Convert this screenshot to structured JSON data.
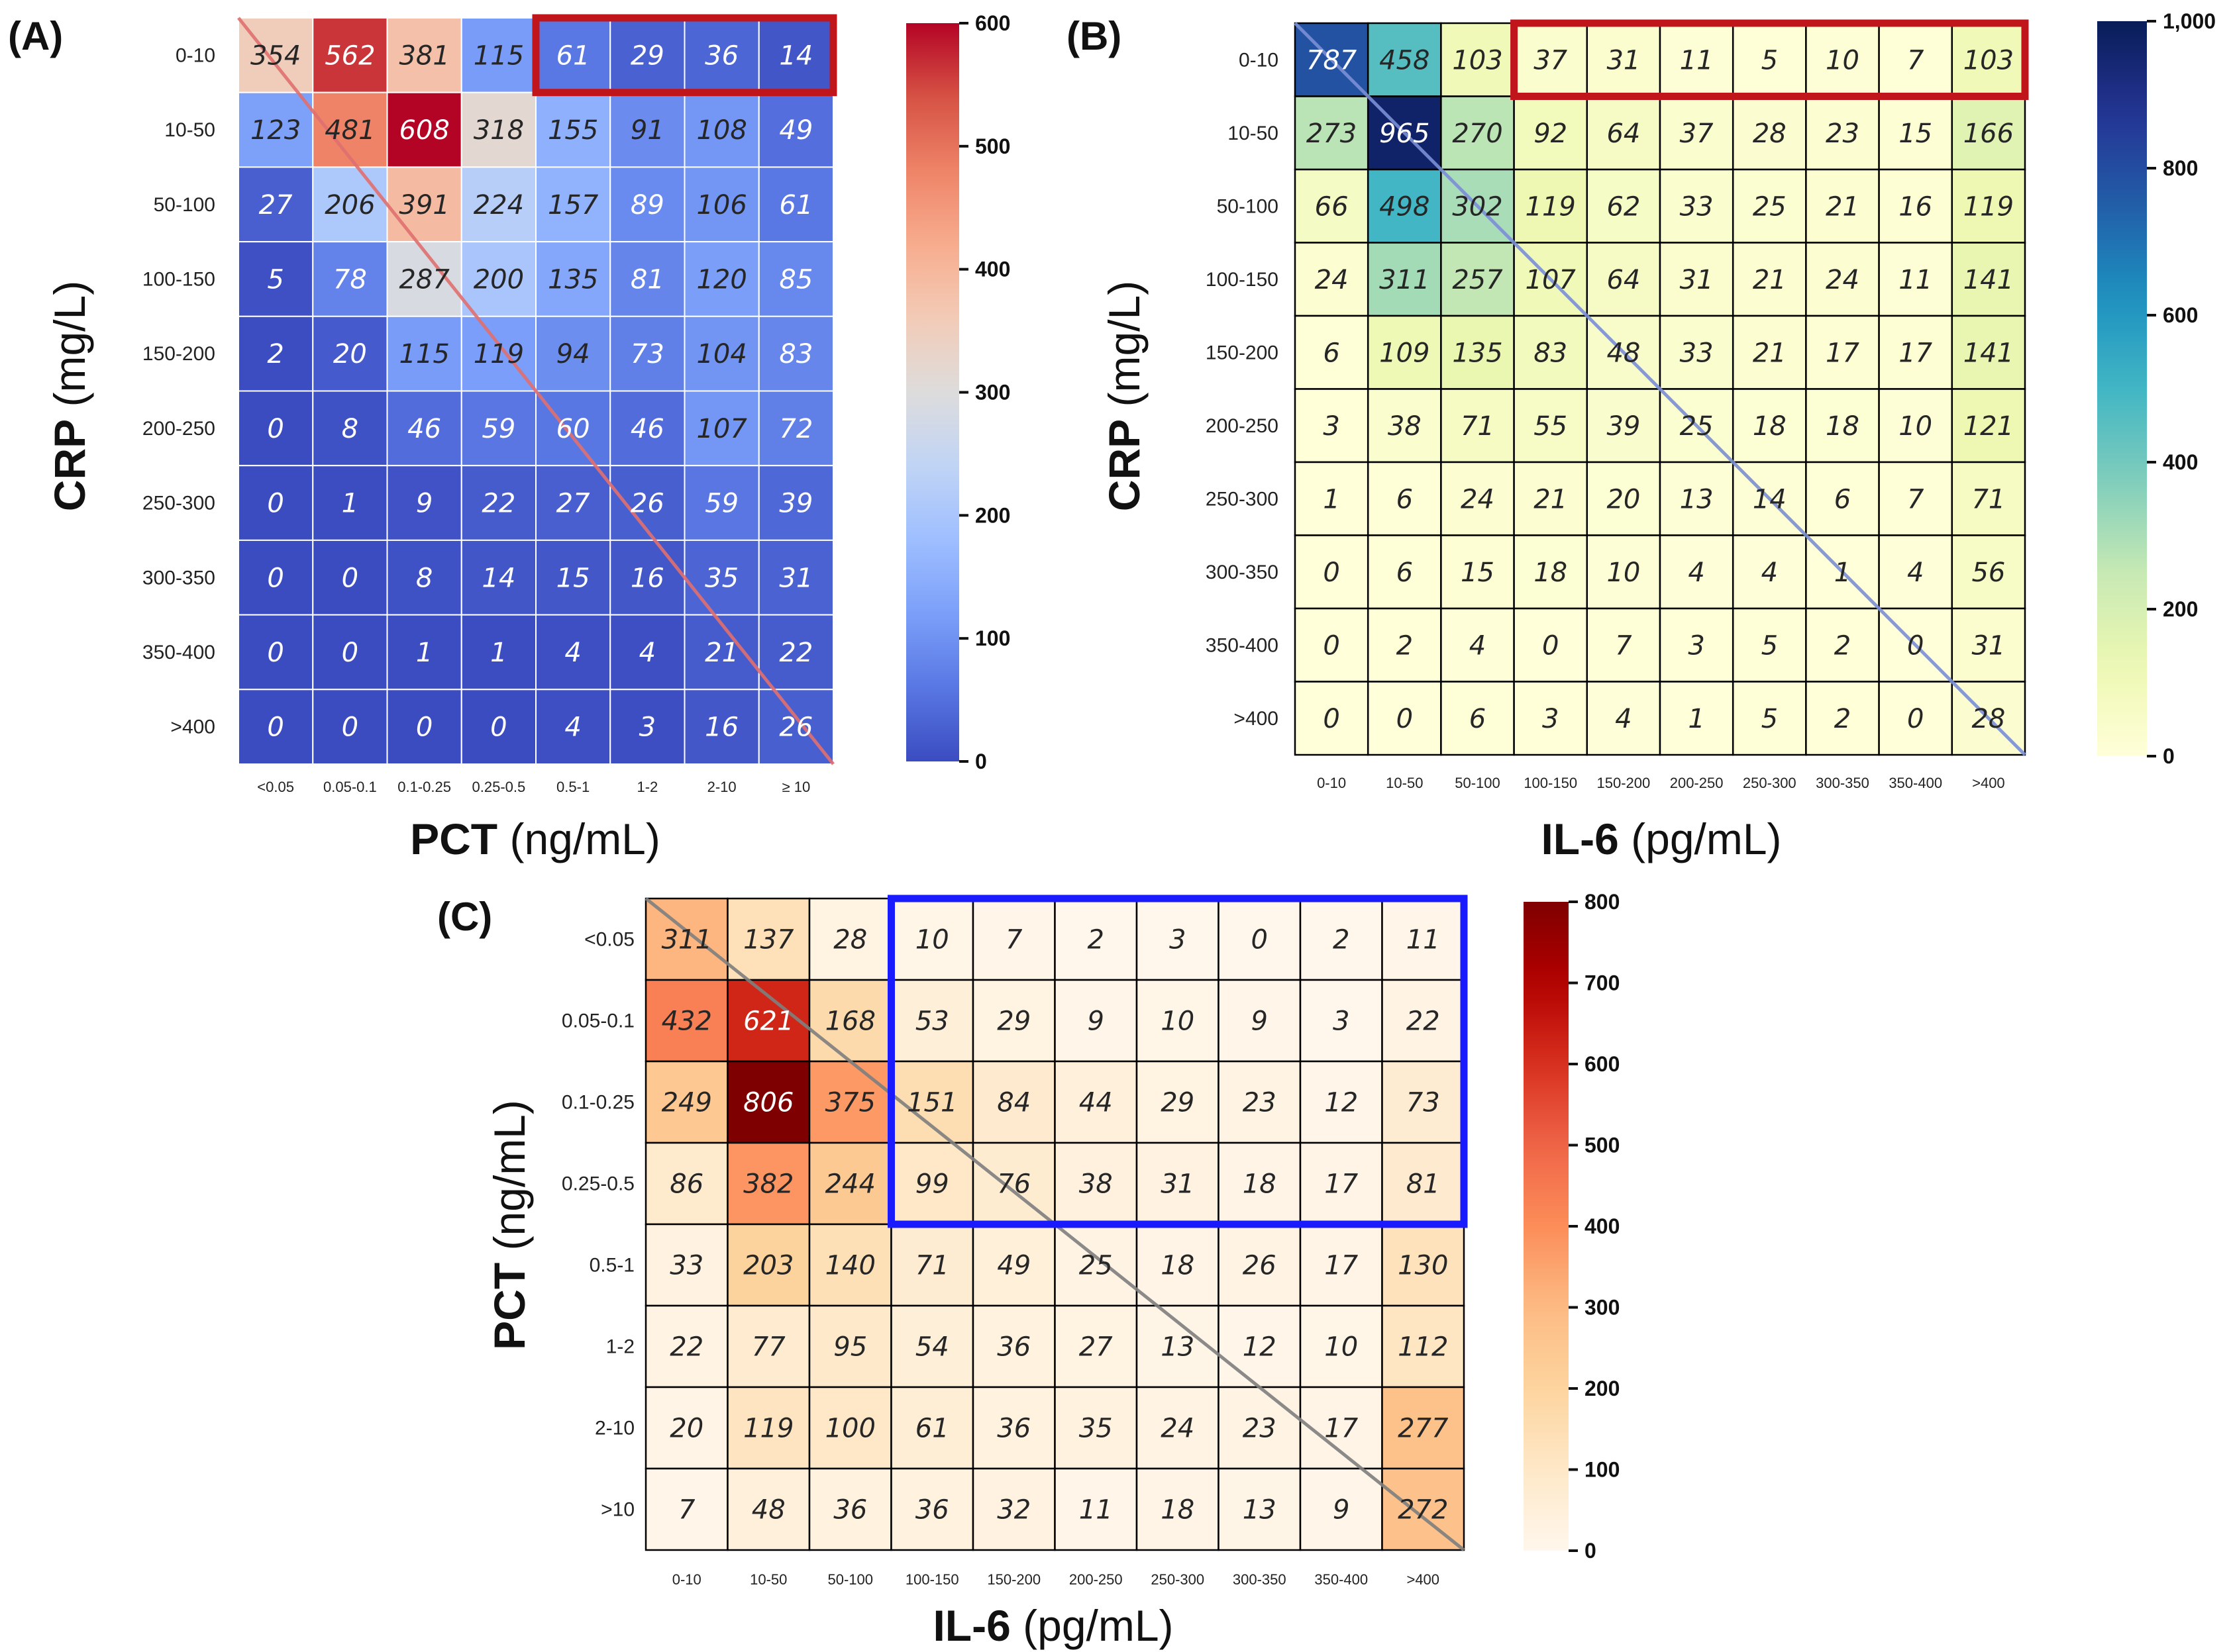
{
  "chart_data": [
    {
      "type": "heatmap",
      "panel_label": "(A)",
      "xlabel_bold": "PCT",
      "xlabel_unit": " (ng/mL)",
      "ylabel_bold": "CRP",
      "ylabel_unit": " (mg/L)",
      "x_categories": [
        "<0.05",
        "0.05-0.1",
        "0.1-0.25",
        "0.25-0.5",
        "0.5-1",
        "1-2",
        "2-10",
        "≥ 10"
      ],
      "y_categories": [
        "0-10",
        "10-50",
        "50-100",
        "100-150",
        "150-200",
        "200-250",
        "250-300",
        "300-350",
        "350-400",
        ">400"
      ],
      "values": [
        [
          354,
          562,
          381,
          115,
          61,
          29,
          36,
          14
        ],
        [
          123,
          481,
          608,
          318,
          155,
          91,
          108,
          49
        ],
        [
          27,
          206,
          391,
          224,
          157,
          89,
          106,
          61
        ],
        [
          5,
          78,
          287,
          200,
          135,
          81,
          120,
          85
        ],
        [
          2,
          20,
          115,
          119,
          94,
          73,
          104,
          83
        ],
        [
          0,
          8,
          46,
          59,
          60,
          46,
          107,
          72
        ],
        [
          0,
          1,
          9,
          22,
          27,
          26,
          59,
          39
        ],
        [
          0,
          0,
          8,
          14,
          15,
          16,
          35,
          31
        ],
        [
          0,
          0,
          1,
          1,
          4,
          4,
          21,
          22
        ],
        [
          0,
          0,
          0,
          0,
          4,
          3,
          16,
          26
        ]
      ],
      "colormap": "coolwarm",
      "vmin": 0,
      "vmax": 600,
      "colorbar_ticks": [
        0,
        100,
        200,
        300,
        400,
        500,
        600
      ],
      "colorbar_tick_labels": [
        "0",
        "100",
        "200",
        "300",
        "400",
        "500",
        "600"
      ],
      "highlight": {
        "row_start": 0,
        "row_end": 0,
        "col_start": 4,
        "col_end": 7,
        "color": "#c0151b"
      },
      "diagonal_color": "#e07070",
      "cell_borders": "white"
    },
    {
      "type": "heatmap",
      "panel_label": "(B)",
      "xlabel_bold": "IL-6",
      "xlabel_unit": " (pg/mL)",
      "ylabel_bold": "CRP",
      "ylabel_unit": " (mg/L)",
      "x_categories": [
        "0-10",
        "10-50",
        "50-100",
        "100-150",
        "150-200",
        "200-250",
        "250-300",
        "300-350",
        "350-400",
        ">400"
      ],
      "y_categories": [
        "0-10",
        "10-50",
        "50-100",
        "100-150",
        "150-200",
        "200-250",
        "250-300",
        "300-350",
        "350-400",
        ">400"
      ],
      "values": [
        [
          787,
          458,
          103,
          37,
          31,
          11,
          5,
          10,
          7,
          103
        ],
        [
          273,
          965,
          270,
          92,
          64,
          37,
          28,
          23,
          15,
          166
        ],
        [
          66,
          498,
          302,
          119,
          62,
          33,
          25,
          21,
          16,
          119
        ],
        [
          24,
          311,
          257,
          107,
          64,
          31,
          21,
          24,
          11,
          141
        ],
        [
          6,
          109,
          135,
          83,
          48,
          33,
          21,
          17,
          17,
          141
        ],
        [
          3,
          38,
          71,
          55,
          39,
          25,
          18,
          18,
          10,
          121
        ],
        [
          1,
          6,
          24,
          21,
          20,
          13,
          14,
          6,
          7,
          71
        ],
        [
          0,
          6,
          15,
          18,
          10,
          4,
          4,
          1,
          4,
          56
        ],
        [
          0,
          2,
          4,
          0,
          7,
          3,
          5,
          2,
          0,
          31
        ],
        [
          0,
          0,
          6,
          3,
          4,
          1,
          5,
          2,
          0,
          28
        ]
      ],
      "colormap": "YlGnBu",
      "vmin": 0,
      "vmax": 1000,
      "colorbar_ticks": [
        0,
        200,
        400,
        600,
        800,
        1000
      ],
      "colorbar_tick_labels": [
        "0",
        "200",
        "400",
        "600",
        "800",
        "1,000"
      ],
      "highlight": {
        "row_start": 0,
        "row_end": 0,
        "col_start": 3,
        "col_end": 9,
        "color": "#c0151b"
      },
      "diagonal_color": "#7b8fd6",
      "cell_borders": "black"
    },
    {
      "type": "heatmap",
      "panel_label": "(C)",
      "xlabel_bold": "IL-6",
      "xlabel_unit": " (pg/mL)",
      "ylabel_bold": "PCT",
      "ylabel_unit": " (ng/mL)",
      "x_categories": [
        "0-10",
        "10-50",
        "50-100",
        "100-150",
        "150-200",
        "200-250",
        "250-300",
        "300-350",
        "350-400",
        ">400"
      ],
      "y_categories": [
        "<0.05",
        "0.05-0.1",
        "0.1-0.25",
        "0.25-0.5",
        "0.5-1",
        "1-2",
        "2-10",
        ">10"
      ],
      "values": [
        [
          311,
          137,
          28,
          10,
          7,
          2,
          3,
          0,
          2,
          11
        ],
        [
          432,
          621,
          168,
          53,
          29,
          9,
          10,
          9,
          3,
          22
        ],
        [
          249,
          806,
          375,
          151,
          84,
          44,
          29,
          23,
          12,
          73
        ],
        [
          86,
          382,
          244,
          99,
          76,
          38,
          31,
          18,
          17,
          81
        ],
        [
          33,
          203,
          140,
          71,
          49,
          25,
          18,
          26,
          17,
          130
        ],
        [
          22,
          77,
          95,
          54,
          36,
          27,
          13,
          12,
          10,
          112
        ],
        [
          20,
          119,
          100,
          61,
          36,
          35,
          24,
          23,
          17,
          277
        ],
        [
          7,
          48,
          36,
          36,
          32,
          11,
          18,
          13,
          9,
          272
        ]
      ],
      "colormap": "OrRd",
      "vmin": 0,
      "vmax": 800,
      "colorbar_ticks": [
        0,
        100,
        200,
        300,
        400,
        500,
        600,
        700,
        800
      ],
      "colorbar_tick_labels": [
        "0",
        "100",
        "200",
        "300",
        "400",
        "500",
        "600",
        "700",
        "800"
      ],
      "highlight": {
        "row_start": 0,
        "row_end": 3,
        "col_start": 3,
        "col_end": 9,
        "color": "#1a1aff"
      },
      "diagonal_color": "#7f7f7f",
      "cell_borders": "black"
    }
  ]
}
